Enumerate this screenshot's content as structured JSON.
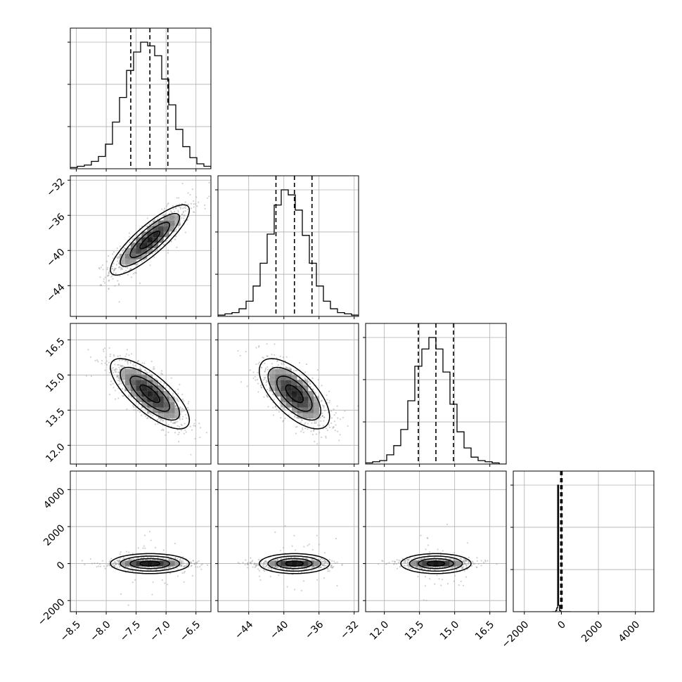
{
  "chart_data": {
    "type": "corner",
    "title": "",
    "parameters": [
      {
        "label": "",
        "range": [
          -8.6,
          -6.25
        ],
        "ticks": [
          -8.5,
          -8.0,
          -7.5,
          -7.0,
          -6.5
        ],
        "tick_labels": [
          "−8.5",
          "−8.0",
          "−7.5",
          "−7.0",
          "−6.5"
        ],
        "quantiles": [
          -7.59,
          -7.27,
          -6.97
        ]
      },
      {
        "label": "",
        "range": [
          -47.5,
          -31.5
        ],
        "ticks": [
          -44,
          -40,
          -36,
          -32
        ],
        "tick_labels": [
          "−44",
          "−40",
          "−36",
          "−32"
        ],
        "quantiles": [
          -40.9,
          -38.8,
          -36.8
        ]
      },
      {
        "label": "",
        "range": [
          11.2,
          17.2
        ],
        "ticks": [
          12.0,
          13.5,
          15.0,
          16.5
        ],
        "tick_labels": [
          "12.0",
          "13.5",
          "15.0",
          "16.5"
        ],
        "quantiles": [
          13.45,
          14.2,
          14.95
        ]
      },
      {
        "label": "",
        "range": [
          -2600,
          5000
        ],
        "ticks": [
          -2000,
          0,
          2000,
          4000
        ],
        "tick_labels": [
          "−2000",
          "0",
          "2000",
          "4000"
        ],
        "quantiles": [
          -40,
          0,
          40
        ]
      }
    ],
    "histograms": [
      {
        "counts": [
          1,
          2,
          3,
          6,
          10,
          20,
          38,
          58,
          80,
          95,
          103,
          100,
          92,
          73,
          52,
          32,
          18,
          9,
          4,
          2
        ]
      },
      {
        "counts": [
          1,
          2,
          3,
          6,
          12,
          24,
          42,
          65,
          88,
          100,
          96,
          84,
          64,
          42,
          24,
          12,
          6,
          3,
          2,
          1
        ]
      },
      {
        "counts": [
          1,
          2,
          3,
          8,
          16,
          30,
          55,
          85,
          100,
          110,
          100,
          80,
          52,
          28,
          14,
          6,
          3,
          2,
          1,
          0
        ]
      },
      {
        "counts": [
          0,
          0,
          0,
          0,
          1,
          3,
          100,
          5,
          1,
          0,
          0,
          0,
          0,
          0,
          0,
          0,
          0,
          0,
          0,
          0
        ]
      }
    ],
    "correlations": [
      {
        "row": 1,
        "col": 0,
        "rho": 0.85
      },
      {
        "row": 2,
        "col": 0,
        "rho": -0.75
      },
      {
        "row": 2,
        "col": 1,
        "rho": -0.65
      },
      {
        "row": 3,
        "col": 0,
        "rho": 0.0
      },
      {
        "row": 3,
        "col": 1,
        "rho": 0.0
      },
      {
        "row": 3,
        "col": 2,
        "rho": 0.0
      }
    ],
    "marginal_spread": [
      0.33,
      2.0,
      0.75,
      150
    ],
    "quantile_levels": [
      0.16,
      0.5,
      0.84
    ],
    "contour_levels_sigma": [
      0.5,
      1.0,
      1.5,
      2.0
    ],
    "grid": true,
    "legend": "none"
  }
}
